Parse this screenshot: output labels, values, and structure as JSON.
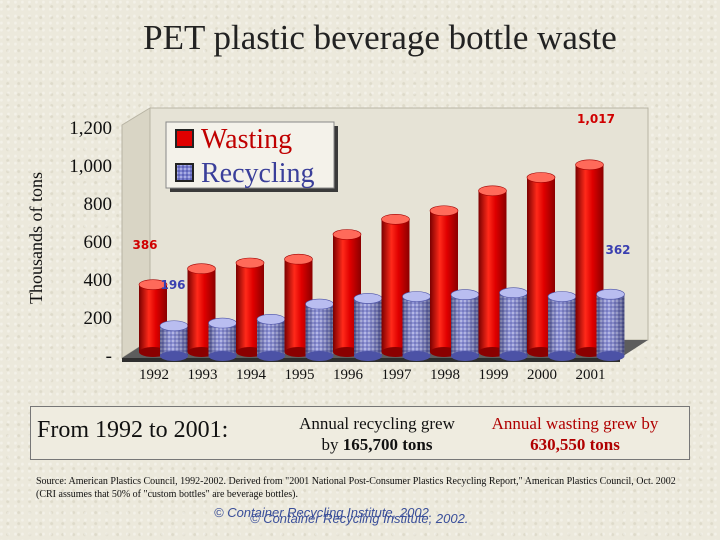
{
  "title": "PET plastic beverage bottle waste",
  "chart_data": {
    "type": "bar",
    "categories": [
      "1992",
      "1993",
      "1994",
      "1995",
      "1996",
      "1997",
      "1998",
      "1999",
      "2000",
      "2001"
    ],
    "series": [
      {
        "name": "Wasting",
        "values": [
          386,
          470,
          500,
          520,
          650,
          730,
          775,
          880,
          950,
          1017
        ]
      },
      {
        "name": "Recycling",
        "values": [
          196,
          210,
          230,
          310,
          340,
          350,
          360,
          370,
          350,
          362
        ]
      }
    ],
    "ylabel": "Thousands of tons",
    "ylim": [
      0,
      1200
    ],
    "yticks": [
      "-",
      "200",
      "400",
      "600",
      "800",
      "1,000",
      "1,200"
    ],
    "grid": false,
    "legend_position": "top-left",
    "colors": {
      "Wasting": "#e00000",
      "Recycling": "#6f74c4"
    },
    "annotations": [
      {
        "text": "386",
        "series": "Wasting",
        "category": "1992"
      },
      {
        "text": "196",
        "series": "Recycling",
        "category": "1992"
      },
      {
        "text": "1,017",
        "series": "Wasting",
        "category": "2001"
      },
      {
        "text": "362",
        "series": "Recycling",
        "category": "2001"
      }
    ]
  },
  "summary": {
    "lead": "From 1992 to 2001:",
    "recycling_line1": "Annual recycling grew",
    "recycling_line2_prefix": "by ",
    "recycling_amount": "165,700 tons",
    "wasting_line1": "Annual wasting grew by",
    "wasting_amount": "630,550 tons"
  },
  "source": "Source: American Plastics Council, 1992-2002. Derived from \"2001 National Post-Consumer Plastics Recycling Report,\" American Plastics Council, Oct. 2002 (CRI assumes that 50% of \"custom bottles\" are beverage bottles).",
  "credit_a": "© Container Recycling Institute, 2002.",
  "credit_b": "© Container Recycling Institute, 2002."
}
